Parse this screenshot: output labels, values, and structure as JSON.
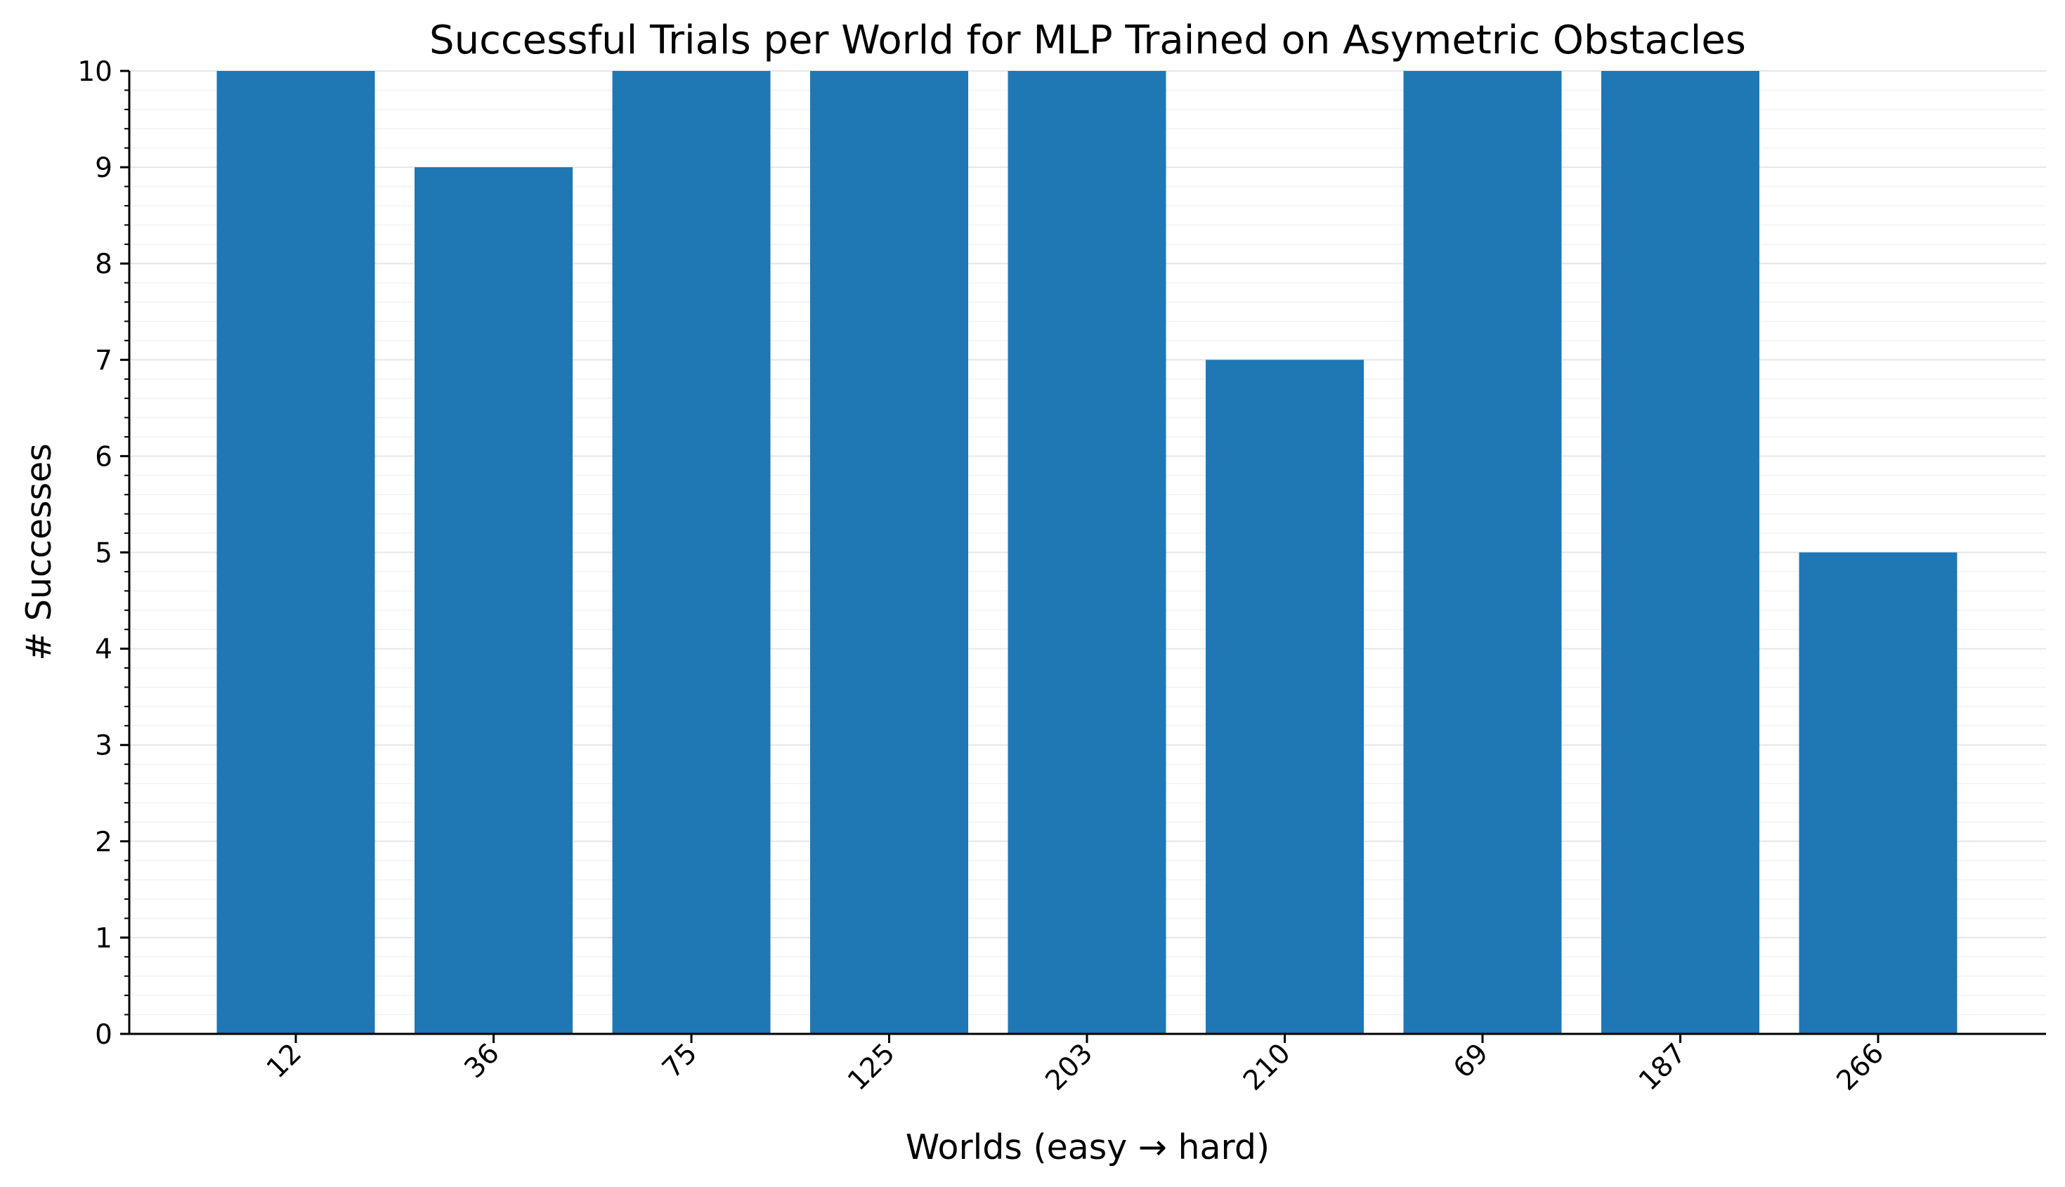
{
  "chart_data": {
    "type": "bar",
    "title": "Successful Trials per World for MLP Trained on Asymetric Obstacles",
    "xlabel": "Worlds (easy → hard)",
    "ylabel": "# Successes",
    "categories": [
      "12",
      "36",
      "75",
      "125",
      "203",
      "210",
      "69",
      "187",
      "266"
    ],
    "values": [
      10,
      9,
      10,
      10,
      10,
      7,
      10,
      10,
      5
    ],
    "ylim": [
      0,
      10
    ],
    "yticks": [
      "0",
      "1",
      "2",
      "3",
      "4",
      "5",
      "6",
      "7",
      "8",
      "9",
      "10"
    ],
    "grid": true,
    "bar_color": "#1f77b4"
  }
}
